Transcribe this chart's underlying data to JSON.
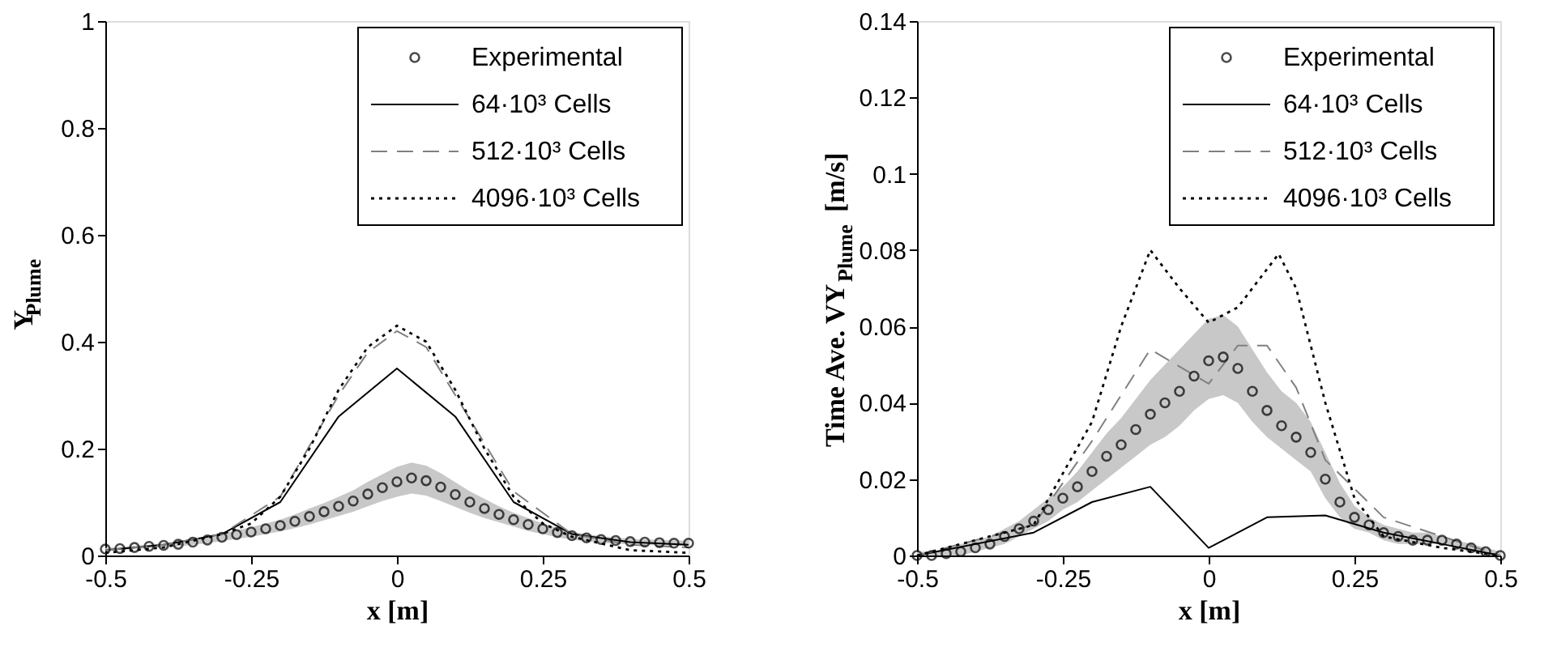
{
  "chart_data": [
    {
      "type": "line",
      "xlabel": "x [m]",
      "ylabel": "Y$_{Plume}$",
      "xlim": [
        -0.5,
        0.5
      ],
      "ylim": [
        0,
        1
      ],
      "xticks": [
        -0.5,
        -0.25,
        0,
        0.25,
        0.5
      ],
      "yticks": [
        0,
        0.2,
        0.4,
        0.6,
        0.8,
        1
      ],
      "grid": false,
      "legend": "top right",
      "series": [
        {
          "name": "Experimental",
          "type": "scatter",
          "marker": "circle",
          "color": "#000000",
          "x": [
            -0.5,
            -0.475,
            -0.45,
            -0.425,
            -0.4,
            -0.375,
            -0.35,
            -0.325,
            -0.3,
            -0.275,
            -0.25,
            -0.225,
            -0.2,
            -0.175,
            -0.15,
            -0.125,
            -0.1,
            -0.075,
            -0.05,
            -0.025,
            0,
            0.025,
            0.05,
            0.075,
            0.1,
            0.125,
            0.15,
            0.175,
            0.2,
            0.225,
            0.25,
            0.275,
            0.3,
            0.325,
            0.35,
            0.375,
            0.4,
            0.425,
            0.45,
            0.475,
            0.5
          ],
          "values": [
            0.012,
            0.013,
            0.015,
            0.017,
            0.019,
            0.021,
            0.025,
            0.029,
            0.034,
            0.039,
            0.044,
            0.05,
            0.056,
            0.064,
            0.073,
            0.082,
            0.092,
            0.102,
            0.115,
            0.127,
            0.138,
            0.145,
            0.14,
            0.128,
            0.114,
            0.1,
            0.088,
            0.077,
            0.067,
            0.058,
            0.05,
            0.043,
            0.037,
            0.033,
            0.03,
            0.028,
            0.026,
            0.025,
            0.024,
            0.023,
            0.023
          ],
          "upper": [
            0.014,
            0.016,
            0.018,
            0.02,
            0.023,
            0.025,
            0.03,
            0.035,
            0.041,
            0.047,
            0.053,
            0.06,
            0.067,
            0.077,
            0.088,
            0.098,
            0.11,
            0.122,
            0.138,
            0.152,
            0.166,
            0.174,
            0.168,
            0.154,
            0.137,
            0.12,
            0.106,
            0.092,
            0.08,
            0.07,
            0.06,
            0.052,
            0.044,
            0.04,
            0.036,
            0.034,
            0.031,
            0.03,
            0.029,
            0.028,
            0.028
          ],
          "lower": [
            0.01,
            0.01,
            0.012,
            0.014,
            0.015,
            0.017,
            0.02,
            0.023,
            0.027,
            0.031,
            0.035,
            0.04,
            0.045,
            0.051,
            0.058,
            0.066,
            0.074,
            0.082,
            0.092,
            0.102,
            0.11,
            0.116,
            0.112,
            0.102,
            0.091,
            0.08,
            0.07,
            0.062,
            0.054,
            0.046,
            0.04,
            0.034,
            0.03,
            0.026,
            0.024,
            0.022,
            0.021,
            0.02,
            0.019,
            0.018,
            0.018
          ]
        },
        {
          "name": "64·10³ Cells",
          "color": "#000000",
          "line_style": "solid",
          "x": [
            -0.5,
            -0.4,
            -0.3,
            -0.2,
            -0.1,
            0,
            0.1,
            0.2,
            0.3,
            0.4,
            0.5
          ],
          "values": [
            0.01,
            0.02,
            0.04,
            0.1,
            0.26,
            0.35,
            0.26,
            0.1,
            0.04,
            0.025,
            0.02
          ]
        },
        {
          "name": "512·10³ Cells",
          "color": "#808080",
          "line_style": "dashed",
          "x": [
            -0.5,
            -0.4,
            -0.3,
            -0.2,
            -0.1,
            -0.05,
            0,
            0.05,
            0.1,
            0.2,
            0.3,
            0.4,
            0.5
          ],
          "values": [
            0.01,
            0.02,
            0.04,
            0.11,
            0.3,
            0.38,
            0.42,
            0.39,
            0.3,
            0.12,
            0.04,
            0.02,
            0.015
          ]
        },
        {
          "name": "4096·10³ Cells",
          "color": "#000000",
          "line_style": "dotted",
          "x": [
            -0.5,
            -0.4,
            -0.3,
            -0.25,
            -0.2,
            -0.15,
            -0.1,
            -0.05,
            0,
            0.05,
            0.1,
            0.15,
            0.2,
            0.25,
            0.3,
            0.4,
            0.5
          ],
          "values": [
            0.005,
            0.015,
            0.04,
            0.06,
            0.11,
            0.2,
            0.31,
            0.39,
            0.43,
            0.4,
            0.31,
            0.2,
            0.11,
            0.06,
            0.035,
            0.01,
            0.005
          ]
        }
      ]
    },
    {
      "type": "line",
      "xlabel": "x [m]",
      "ylabel": "Time Ave. VY$_{Plume}$ [m/s]",
      "xlim": [
        -0.5,
        0.5
      ],
      "ylim": [
        0,
        0.14
      ],
      "xticks": [
        -0.5,
        -0.25,
        0,
        0.25,
        0.5
      ],
      "yticks": [
        0,
        0.02,
        0.04,
        0.06,
        0.08,
        0.1,
        0.12,
        0.14
      ],
      "grid": false,
      "legend": "top right",
      "series": [
        {
          "name": "Experimental",
          "type": "scatter",
          "marker": "circle",
          "color": "#000000",
          "x": [
            -0.5,
            -0.475,
            -0.45,
            -0.425,
            -0.4,
            -0.375,
            -0.35,
            -0.325,
            -0.3,
            -0.275,
            -0.25,
            -0.225,
            -0.2,
            -0.175,
            -0.15,
            -0.125,
            -0.1,
            -0.075,
            -0.05,
            -0.025,
            0,
            0.025,
            0.05,
            0.075,
            0.1,
            0.125,
            0.15,
            0.175,
            0.2,
            0.225,
            0.25,
            0.275,
            0.3,
            0.325,
            0.35,
            0.375,
            0.4,
            0.425,
            0.45,
            0.475,
            0.5
          ],
          "values": [
            0,
            0,
            0.0005,
            0.001,
            0.002,
            0.003,
            0.005,
            0.007,
            0.009,
            0.012,
            0.015,
            0.018,
            0.022,
            0.026,
            0.029,
            0.033,
            0.037,
            0.04,
            0.043,
            0.047,
            0.051,
            0.052,
            0.049,
            0.043,
            0.038,
            0.034,
            0.031,
            0.027,
            0.02,
            0.014,
            0.01,
            0.008,
            0.006,
            0.005,
            0.004,
            0.004,
            0.004,
            0.003,
            0.002,
            0.001,
            0
          ],
          "upper": [
            0.001,
            0.001,
            0.002,
            0.003,
            0.004,
            0.005,
            0.007,
            0.009,
            0.012,
            0.015,
            0.018,
            0.022,
            0.027,
            0.032,
            0.036,
            0.041,
            0.046,
            0.05,
            0.054,
            0.058,
            0.062,
            0.063,
            0.06,
            0.054,
            0.048,
            0.043,
            0.04,
            0.035,
            0.027,
            0.019,
            0.013,
            0.01,
            0.008,
            0.007,
            0.006,
            0.006,
            0.005,
            0.004,
            0.003,
            0.002,
            0.001
          ],
          "lower": [
            0,
            0,
            0,
            0,
            0.001,
            0.002,
            0.003,
            0.005,
            0.007,
            0.009,
            0.012,
            0.014,
            0.017,
            0.02,
            0.023,
            0.026,
            0.029,
            0.031,
            0.034,
            0.038,
            0.041,
            0.042,
            0.04,
            0.035,
            0.031,
            0.028,
            0.025,
            0.022,
            0.015,
            0.01,
            0.007,
            0.006,
            0.004,
            0.003,
            0.003,
            0.003,
            0.003,
            0.002,
            0.001,
            0,
            0
          ]
        },
        {
          "name": "64·10³ Cells",
          "color": "#000000",
          "line_style": "solid",
          "x": [
            -0.5,
            -0.3,
            -0.2,
            -0.1,
            0,
            0.1,
            0.2,
            0.3,
            0.4,
            0.5
          ],
          "values": [
            0,
            0.006,
            0.014,
            0.018,
            0.002,
            0.01,
            0.0105,
            0.006,
            0.003,
            0
          ]
        },
        {
          "name": "512·10³ Cells",
          "color": "#808080",
          "line_style": "dashed",
          "x": [
            -0.5,
            -0.3,
            -0.2,
            -0.1,
            0,
            0.05,
            0.1,
            0.15,
            0.2,
            0.3,
            0.4,
            0.5
          ],
          "values": [
            0,
            0.008,
            0.03,
            0.054,
            0.045,
            0.055,
            0.055,
            0.044,
            0.025,
            0.01,
            0.005,
            0
          ]
        },
        {
          "name": "4096·10³ Cells",
          "color": "#000000",
          "line_style": "dotted",
          "x": [
            -0.5,
            -0.3,
            -0.2,
            -0.15,
            -0.1,
            -0.05,
            0,
            0.05,
            0.12,
            0.15,
            0.2,
            0.25,
            0.3,
            0.4,
            0.5
          ],
          "values": [
            0,
            0.008,
            0.035,
            0.06,
            0.08,
            0.07,
            0.061,
            0.065,
            0.079,
            0.07,
            0.04,
            0.015,
            0.005,
            0.002,
            0
          ]
        }
      ]
    }
  ]
}
